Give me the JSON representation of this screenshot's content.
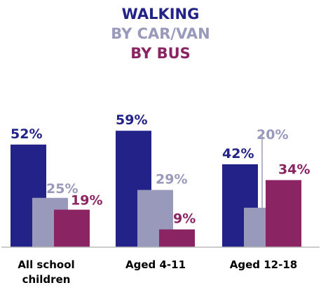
{
  "chart_data": {
    "type": "bar",
    "title": "",
    "xlabel": "",
    "ylabel": "",
    "ylim": [
      0,
      65
    ],
    "grid": false,
    "legend_placement": "top-center",
    "categories": [
      [
        "All school",
        "children"
      ],
      [
        "Aged 4-11"
      ],
      [
        "Aged 12-18"
      ]
    ],
    "series": [
      {
        "name": "WALKING",
        "color": "#222288",
        "values": [
          52,
          59,
          42
        ],
        "labels": [
          "52%",
          "59%",
          "42%"
        ]
      },
      {
        "name": "BY CAR/VAN",
        "color": "#9999bb",
        "values": [
          25,
          29,
          20
        ],
        "labels": [
          "25%",
          "29%",
          "20%"
        ]
      },
      {
        "name": "BY BUS",
        "color": "#8b2462",
        "values": [
          19,
          9,
          34
        ],
        "labels": [
          "19%",
          "9%",
          "34%"
        ]
      }
    ]
  }
}
